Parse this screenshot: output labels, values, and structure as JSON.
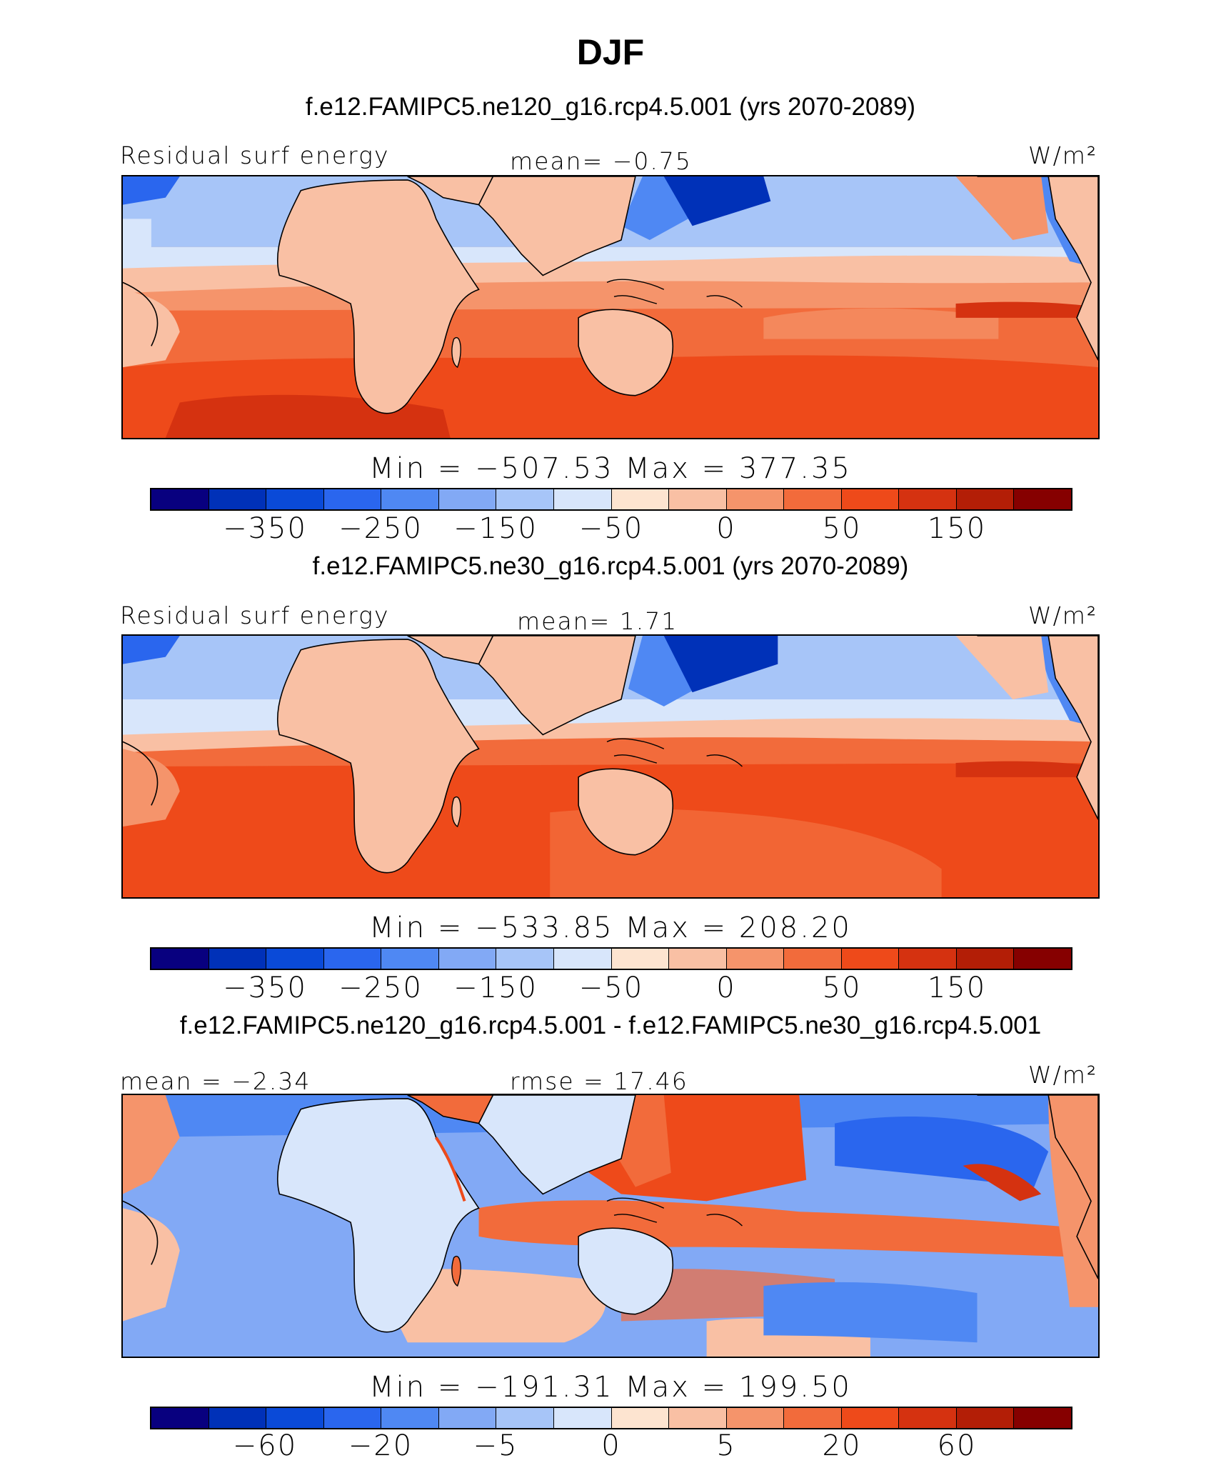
{
  "title": "DJF",
  "units": "W/m²",
  "palette": {
    "diverging_colors": [
      "#08007f",
      "#0031b8",
      "#0a4ad8",
      "#2a66ee",
      "#4f88f3",
      "#82a9f5",
      "#a7c5f8",
      "#d8e6fb",
      "#fde4d0",
      "#f9c0a4",
      "#f5946b",
      "#f26b3b",
      "#ee4a1a",
      "#d53210",
      "#b31e06",
      "#860000"
    ],
    "coast_color": "#000000"
  },
  "panels": [
    {
      "case_title": "f.e12.FAMIPC5.ne120_g16.rcp4.5.001 (yrs 2070-2089)",
      "left_label": "Residual surf energy",
      "center_label": "mean=   −0.75",
      "right_label": "W/m²",
      "minmax": "Min = −507.53 Max = 377.35",
      "tick_labels": [
        "−350",
        "−250",
        "−150",
        "−50",
        "0",
        "50",
        "150"
      ],
      "field_mean": -0.75,
      "field_min": -507.53,
      "field_max": 377.35
    },
    {
      "case_title": "f.e12.FAMIPC5.ne30_g16.rcp4.5.001 (yrs 2070-2089)",
      "left_label": "Residual surf energy",
      "center_label": "mean=   1.71",
      "right_label": "W/m²",
      "minmax": "Min = −533.85 Max = 208.20",
      "tick_labels": [
        "−350",
        "−250",
        "−150",
        "−50",
        "0",
        "50",
        "150"
      ],
      "field_mean": 1.71,
      "field_min": -533.85,
      "field_max": 208.2
    },
    {
      "case_title": "f.e12.FAMIPC5.ne120_g16.rcp4.5.001 - f.e12.FAMIPC5.ne30_g16.rcp4.5.001",
      "left_label": "mean =  −2.34",
      "center_label": "rmse =  17.46",
      "right_label": "W/m²",
      "minmax": "Min = −191.31 Max = 199.50",
      "tick_labels": [
        "−60",
        "−20",
        "−5",
        "0",
        "5",
        "20",
        "60"
      ],
      "field_mean": -2.34,
      "field_rmse": 17.46,
      "field_min": -191.31,
      "field_max": 199.5
    }
  ]
}
